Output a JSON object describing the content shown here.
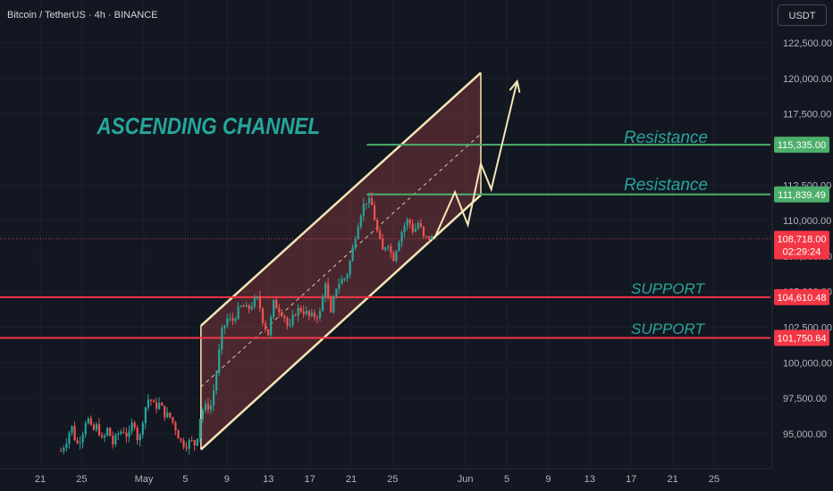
{
  "header": {
    "pair_label": "Bitcoin / TetherUS · 4h · BINANCE"
  },
  "axis": {
    "unit_button": "USDT"
  },
  "colors": {
    "background": "#131722",
    "bull": "#26a69a",
    "bear": "#ef5350",
    "channel": "#f3e6b4",
    "green_line": "#4caf6a",
    "red_line": "#f23645",
    "annotation": "#26a69a"
  },
  "chart_data": {
    "type": "candlestick",
    "symbol": "BTCUSDT",
    "timeframe": "4h",
    "exchange": "BINANCE",
    "ylim": [
      93500,
      124200
    ],
    "y_ticks": [
      {
        "value": 95000,
        "label": "95,000.00"
      },
      {
        "value": 97500,
        "label": "97,500.00"
      },
      {
        "value": 100000,
        "label": "100,000.00"
      },
      {
        "value": 102500,
        "label": "102,500.00"
      },
      {
        "value": 105000,
        "label": "105,000.00"
      },
      {
        "value": 107500,
        "label": "107,500.00"
      },
      {
        "value": 110000,
        "label": "110,000.00"
      },
      {
        "value": 112500,
        "label": "112,500.00"
      },
      {
        "value": 117500,
        "label": "117,500.00"
      },
      {
        "value": 120000,
        "label": "120,000.00"
      },
      {
        "value": 122500,
        "label": "122,500.00"
      }
    ],
    "x_ticks": [
      {
        "date": "2025-04-21",
        "label": "21"
      },
      {
        "date": "2025-04-25",
        "label": "25"
      },
      {
        "date": "2025-05-01",
        "label": "May"
      },
      {
        "date": "2025-05-05",
        "label": "5"
      },
      {
        "date": "2025-05-09",
        "label": "9"
      },
      {
        "date": "2025-05-13",
        "label": "13"
      },
      {
        "date": "2025-05-17",
        "label": "17"
      },
      {
        "date": "2025-05-21",
        "label": "21"
      },
      {
        "date": "2025-05-25",
        "label": "25"
      },
      {
        "date": "2025-06-01",
        "label": "Jun"
      },
      {
        "date": "2025-06-05",
        "label": "5"
      },
      {
        "date": "2025-06-09",
        "label": "9"
      },
      {
        "date": "2025-06-13",
        "label": "13"
      },
      {
        "date": "2025-06-17",
        "label": "17"
      },
      {
        "date": "2025-06-21",
        "label": "21"
      },
      {
        "date": "2025-06-25",
        "label": "25"
      }
    ],
    "price_path": [
      [
        "2025-04-23 00:00",
        93800
      ],
      [
        "2025-04-23 12:00",
        94500
      ],
      [
        "2025-04-24 00:00",
        95600
      ],
      [
        "2025-04-24 12:00",
        94200
      ],
      [
        "2025-04-25 00:00",
        94900
      ],
      [
        "2025-04-25 12:00",
        96300
      ],
      [
        "2025-04-26 00:00",
        95100
      ],
      [
        "2025-04-26 12:00",
        95600
      ],
      [
        "2025-04-27 00:00",
        94400
      ],
      [
        "2025-04-27 12:00",
        95400
      ],
      [
        "2025-04-28 00:00",
        94300
      ],
      [
        "2025-04-28 12:00",
        95000
      ],
      [
        "2025-04-29 00:00",
        95300
      ],
      [
        "2025-04-29 12:00",
        94700
      ],
      [
        "2025-04-30 00:00",
        96100
      ],
      [
        "2025-04-30 12:00",
        94200
      ],
      [
        "2025-05-01 00:00",
        96600
      ],
      [
        "2025-05-01 12:00",
        97600
      ],
      [
        "2025-05-02 00:00",
        96900
      ],
      [
        "2025-05-02 12:00",
        97100
      ],
      [
        "2025-05-03 00:00",
        96400
      ],
      [
        "2025-05-03 12:00",
        96200
      ],
      [
        "2025-05-04 00:00",
        95500
      ],
      [
        "2025-05-04 12:00",
        94500
      ],
      [
        "2025-05-05 00:00",
        94200
      ],
      [
        "2025-05-05 12:00",
        94500
      ],
      [
        "2025-05-06 00:00",
        94200
      ],
      [
        "2025-05-06 12:00",
        96600
      ],
      [
        "2025-05-07 00:00",
        96900
      ],
      [
        "2025-05-07 12:00",
        97000
      ],
      [
        "2025-05-08 00:00",
        99400
      ],
      [
        "2025-05-08 12:00",
        102100
      ],
      [
        "2025-05-09 00:00",
        103100
      ],
      [
        "2025-05-09 12:00",
        102900
      ],
      [
        "2025-05-10 00:00",
        103600
      ],
      [
        "2025-05-10 12:00",
        104000
      ],
      [
        "2025-05-11 00:00",
        103700
      ],
      [
        "2025-05-11 12:00",
        104200
      ],
      [
        "2025-05-12 00:00",
        104500
      ],
      [
        "2025-05-12 12:00",
        102900
      ],
      [
        "2025-05-13 00:00",
        102000
      ],
      [
        "2025-05-13 12:00",
        104200
      ],
      [
        "2025-05-14 00:00",
        103800
      ],
      [
        "2025-05-14 12:00",
        103400
      ],
      [
        "2025-05-15 00:00",
        102200
      ],
      [
        "2025-05-15 12:00",
        103500
      ],
      [
        "2025-05-16 00:00",
        103800
      ],
      [
        "2025-05-16 12:00",
        103600
      ],
      [
        "2025-05-17 00:00",
        103200
      ],
      [
        "2025-05-17 12:00",
        103300
      ],
      [
        "2025-05-18 00:00",
        103500
      ],
      [
        "2025-05-18 12:00",
        105800
      ],
      [
        "2025-05-19 00:00",
        103200
      ],
      [
        "2025-05-19 12:00",
        105300
      ],
      [
        "2025-05-20 00:00",
        105800
      ],
      [
        "2025-05-20 12:00",
        106000
      ],
      [
        "2025-05-21 00:00",
        107500
      ],
      [
        "2025-05-21 12:00",
        109400
      ],
      [
        "2025-05-22 00:00",
        110800
      ],
      [
        "2025-05-22 12:00",
        111500
      ],
      [
        "2025-05-23 00:00",
        111000
      ],
      [
        "2025-05-23 12:00",
        109200
      ],
      [
        "2025-05-24 00:00",
        107800
      ],
      [
        "2025-05-24 12:00",
        108600
      ],
      [
        "2025-05-25 00:00",
        107200
      ],
      [
        "2025-05-25 12:00",
        108500
      ],
      [
        "2025-05-26 00:00",
        109500
      ],
      [
        "2025-05-26 12:00",
        110100
      ],
      [
        "2025-05-27 00:00",
        109200
      ],
      [
        "2025-05-27 12:00",
        109900
      ],
      [
        "2025-05-28 00:00",
        108700
      ],
      [
        "2025-05-28 12:00",
        108800
      ],
      [
        "2025-05-29 00:00",
        108718
      ]
    ],
    "channel": {
      "upper": [
        [
          "2025-05-06 12:00",
          102600
        ],
        [
          "2025-06-02 12:00",
          120400
        ]
      ],
      "lower": [
        [
          "2025-05-06 12:00",
          93900
        ],
        [
          "2025-06-02 12:00",
          111800
        ]
      ],
      "midline": [
        [
          "2025-05-06 12:00",
          98300
        ],
        [
          "2025-06-02 12:00",
          116100
        ]
      ]
    },
    "projection_path": [
      [
        "2025-05-29 00:00",
        108718
      ],
      [
        "2025-05-31 00:00",
        112000
      ],
      [
        "2025-06-01 06:00",
        109700
      ],
      [
        "2025-06-02 12:00",
        114000
      ],
      [
        "2025-06-03 12:00",
        112200
      ],
      [
        "2025-06-06 00:00",
        119800
      ]
    ],
    "levels": [
      {
        "value": 115335,
        "label": "115,335.00",
        "annotation": "Resistance",
        "color": "#4caf6a"
      },
      {
        "value": 111839.49,
        "label": "111,839.49",
        "annotation": "Resistance",
        "color": "#4caf6a"
      },
      {
        "value": 104610.48,
        "label": "104,610.48",
        "annotation": "SUPPORT",
        "color": "#f23645"
      },
      {
        "value": 101750.64,
        "label": "101,750.64",
        "annotation": "SUPPORT",
        "color": "#f23645"
      }
    ],
    "current_price": {
      "value": 108718,
      "label": "108,718.00",
      "countdown": "02:29:24"
    },
    "channel_annotation": "ASCENDING CHANNEL"
  }
}
